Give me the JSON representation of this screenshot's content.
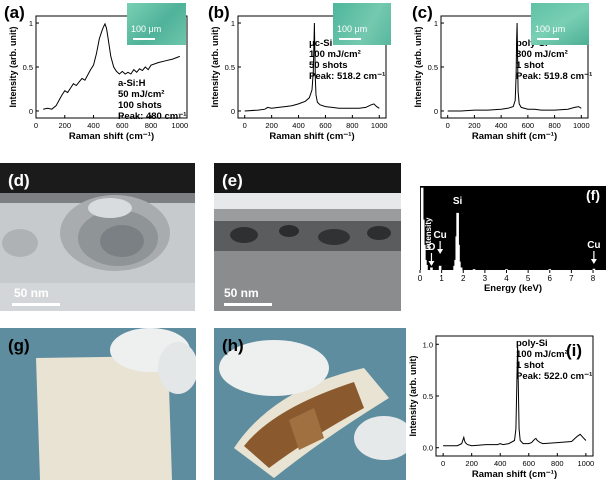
{
  "panels": {
    "a": {
      "tag": "(a)",
      "inset_scale": "100 μm"
    },
    "b": {
      "tag": "(b)",
      "inset_scale": "100 μm"
    },
    "c": {
      "tag": "(c)",
      "inset_scale": "100 μm"
    },
    "d": {
      "tag": "(d)",
      "scale": "50 nm"
    },
    "e": {
      "tag": "(e)",
      "scale": "50 nm"
    },
    "f": {
      "tag": "(f)"
    },
    "g": {
      "tag": "(g)"
    },
    "h": {
      "tag": "(h)"
    },
    "i": {
      "tag": "(i)"
    }
  },
  "colors": {
    "insetTeal": "#59b89a",
    "temDark": "#1b1b1b",
    "glove": "#eef0f0",
    "substrate": "#e8e3d2",
    "film": "#8a5a2e",
    "background": "#5f8da0"
  },
  "chart_data": [
    {
      "id": "a",
      "type": "line",
      "tag": "(a)",
      "xlabel": "Raman shift (cm⁻¹)",
      "ylabel": "Intensity (arb. unit)",
      "xlim": [
        0,
        1050
      ],
      "ylim": [
        -0.08,
        1.08
      ],
      "xticks": [
        0,
        200,
        400,
        600,
        800,
        1000
      ],
      "yticks": [
        0,
        0.5,
        1
      ],
      "annotation": [
        "a-Si:H",
        "50 mJ/cm²",
        "100 shots",
        "Peak: 480 cm⁻¹"
      ],
      "series": [
        {
          "x": [
            50,
            80,
            110,
            140,
            160,
            180,
            200,
            220,
            240,
            260,
            280,
            300,
            320,
            340,
            360,
            380,
            400,
            420,
            440,
            460,
            470,
            480,
            490,
            500,
            520,
            540,
            560,
            580,
            600,
            620,
            640,
            660,
            680,
            700,
            720,
            740,
            760,
            780,
            800,
            850,
            900,
            950,
            1000
          ],
          "y": [
            0.02,
            0.03,
            0.02,
            0.06,
            0.12,
            0.18,
            0.23,
            0.21,
            0.26,
            0.31,
            0.29,
            0.33,
            0.37,
            0.35,
            0.41,
            0.47,
            0.52,
            0.65,
            0.82,
            0.92,
            0.96,
            0.99,
            0.94,
            0.84,
            0.62,
            0.5,
            0.45,
            0.42,
            0.45,
            0.42,
            0.44,
            0.42,
            0.47,
            0.44,
            0.48,
            0.46,
            0.5,
            0.47,
            0.52,
            0.55,
            0.57,
            0.59,
            0.62
          ]
        }
      ]
    },
    {
      "id": "b",
      "type": "line",
      "tag": "(b)",
      "xlabel": "Raman shift (cm⁻¹)",
      "ylabel": "Intensity (arb. unit)",
      "xlim": [
        -50,
        1050
      ],
      "ylim": [
        -0.08,
        1.08
      ],
      "xticks": [
        0,
        200,
        400,
        600,
        800,
        1000
      ],
      "yticks": [
        0,
        0.5,
        1
      ],
      "annotation": [
        "μc-Si",
        "100 mJ/cm²",
        "50 shots",
        "Peak: 518.2 cm⁻¹"
      ],
      "series": [
        {
          "x": [
            0,
            100,
            150,
            170,
            200,
            250,
            300,
            350,
            400,
            450,
            480,
            500,
            510,
            515,
            518,
            521,
            525,
            530,
            540,
            560,
            600,
            650,
            700,
            750,
            800,
            850,
            900,
            940,
            960,
            980,
            1000
          ],
          "y": [
            0.0,
            0.01,
            0.02,
            0.04,
            0.03,
            0.04,
            0.05,
            0.06,
            0.08,
            0.11,
            0.15,
            0.24,
            0.45,
            0.8,
            1.0,
            0.7,
            0.35,
            0.18,
            0.1,
            0.07,
            0.05,
            0.04,
            0.03,
            0.03,
            0.03,
            0.03,
            0.04,
            0.07,
            0.08,
            0.05,
            0.03
          ]
        }
      ]
    },
    {
      "id": "c",
      "type": "line",
      "tag": "(c)",
      "xlabel": "Raman shift (cm⁻¹)",
      "ylabel": "Intensity (arb. unit)",
      "xlim": [
        -50,
        1050
      ],
      "ylim": [
        -0.08,
        1.08
      ],
      "xticks": [
        0,
        200,
        400,
        600,
        800,
        1000
      ],
      "yticks": [
        0,
        0.5,
        1
      ],
      "annotation": [
        "poly-Si",
        "300 mJ/cm²",
        "1 shot",
        "Peak: 519.8 cm⁻¹"
      ],
      "series": [
        {
          "x": [
            0,
            100,
            200,
            300,
            400,
            450,
            490,
            505,
            512,
            516,
            519.8,
            523,
            527,
            535,
            550,
            600,
            650,
            700,
            800,
            900,
            950,
            980,
            1000
          ],
          "y": [
            0.0,
            0.0,
            0.01,
            0.01,
            0.02,
            0.03,
            0.05,
            0.12,
            0.4,
            0.8,
            1.0,
            0.6,
            0.22,
            0.08,
            0.04,
            0.02,
            0.02,
            0.01,
            0.01,
            0.02,
            0.04,
            0.05,
            0.03
          ]
        }
      ]
    },
    {
      "id": "f",
      "type": "bar",
      "tag": "(f)",
      "xlabel": "Energy (keV)",
      "ylabel": "Intensity",
      "xlim": [
        0,
        8.6
      ],
      "xticks": [
        0,
        1,
        2,
        3,
        4,
        5,
        6,
        7,
        8
      ],
      "peak_labels": [
        {
          "label": "O",
          "x": 0.53,
          "arrow": true
        },
        {
          "label": "Cu",
          "x": 0.93,
          "arrow": true
        },
        {
          "label": "Si",
          "x": 1.74,
          "arrow": false
        },
        {
          "label": "Cu",
          "x": 8.04,
          "arrow": true
        }
      ],
      "x": [
        0.1,
        0.15,
        0.2,
        0.25,
        0.3,
        0.53,
        0.93,
        1.6,
        1.65,
        1.7,
        1.74,
        1.78,
        1.82,
        1.9,
        2.5,
        4,
        6,
        8.04
      ],
      "values": [
        0.98,
        0.6,
        0.3,
        0.12,
        0.06,
        0.03,
        0.05,
        0.05,
        0.12,
        0.4,
        0.68,
        0.3,
        0.1,
        0.03,
        0.01,
        0.01,
        0.01,
        0.015
      ]
    },
    {
      "id": "i",
      "type": "line",
      "tag": "(i)",
      "xlabel": "Raman shift (cm⁻¹)",
      "ylabel": "Intensity (arb. unit)",
      "xlim": [
        -50,
        1050
      ],
      "ylim": [
        -0.08,
        1.08
      ],
      "xticks": [
        0,
        200,
        400,
        600,
        800,
        1000
      ],
      "yticks": [
        0.0,
        0.5,
        1.0
      ],
      "annotation": [
        "poly-Si",
        "100 mJ/cm²",
        "1 shot",
        "Peak: 522.0 cm⁻¹"
      ],
      "series": [
        {
          "x": [
            0,
            60,
            100,
            130,
            145,
            150,
            155,
            170,
            200,
            300,
            380,
            400,
            420,
            460,
            500,
            510,
            516,
            522,
            527,
            532,
            540,
            560,
            600,
            620,
            640,
            650,
            660,
            680,
            700,
            800,
            900,
            940,
            960,
            980,
            1000
          ],
          "y": [
            0.02,
            0.02,
            0.02,
            0.04,
            0.1,
            0.07,
            0.05,
            0.03,
            0.02,
            0.03,
            0.03,
            0.04,
            0.03,
            0.04,
            0.07,
            0.18,
            0.6,
            1.0,
            0.55,
            0.18,
            0.07,
            0.04,
            0.04,
            0.05,
            0.08,
            0.09,
            0.07,
            0.05,
            0.04,
            0.05,
            0.06,
            0.11,
            0.13,
            0.1,
            0.07
          ]
        }
      ]
    }
  ]
}
